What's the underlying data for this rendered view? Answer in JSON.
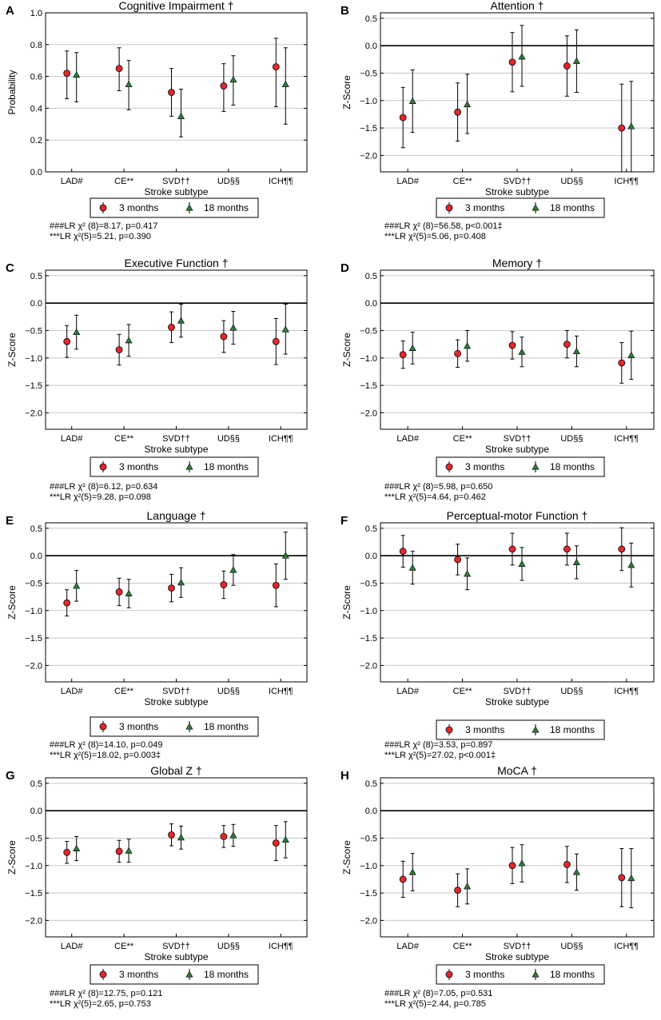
{
  "chart_data": [
    {
      "type": "errorbar",
      "panel": "A",
      "title": "Cognitive Impairment †",
      "xlabel": "Stroke subtype",
      "ylabel": "Probability",
      "ylim": [
        0.0,
        1.0
      ],
      "yticks": [
        "0.0",
        "0.2",
        "0.4",
        "0.6",
        "0.8",
        "1.0"
      ],
      "ytick_values": [
        0.0,
        0.2,
        0.4,
        0.6,
        0.8,
        1.0
      ],
      "zero_line": false,
      "categories": [
        "LAD#",
        "CE**",
        "SVD††",
        "UD§§",
        "ICH¶¶"
      ],
      "series": [
        {
          "name": "3 months",
          "values": [
            0.62,
            0.65,
            0.5,
            0.54,
            0.66
          ],
          "lower": [
            0.46,
            0.51,
            0.35,
            0.38,
            0.41
          ],
          "upper": [
            0.76,
            0.78,
            0.65,
            0.68,
            0.84
          ]
        },
        {
          "name": "18 months",
          "values": [
            0.61,
            0.55,
            0.35,
            0.58,
            0.55
          ],
          "lower": [
            0.44,
            0.39,
            0.22,
            0.42,
            0.3
          ],
          "upper": [
            0.75,
            0.7,
            0.52,
            0.73,
            0.78
          ]
        }
      ],
      "legend": [
        "3 months",
        "18 months"
      ],
      "stats": [
        "###LR χ² (8)=8.17, p=0.417",
        "***LR χ²(5)=5.21, p=0.390"
      ]
    },
    {
      "type": "errorbar",
      "panel": "B",
      "title": "Attention †",
      "xlabel": "Stroke subtype",
      "ylabel": "Z-Score",
      "ylim": [
        -2.3,
        0.6
      ],
      "yticks": [
        "0.5",
        "0.0",
        "−0.5",
        "−1.0",
        "−1.5",
        "−2.0"
      ],
      "ytick_values": [
        0.5,
        0.0,
        -0.5,
        -1.0,
        -1.5,
        -2.0
      ],
      "zero_line": true,
      "categories": [
        "LAD#",
        "CE**",
        "SVD††",
        "UD§§",
        "ICH¶¶"
      ],
      "series": [
        {
          "name": "3 months",
          "values": [
            -1.31,
            -1.21,
            -0.3,
            -0.37,
            -1.5
          ],
          "lower": [
            -1.86,
            -1.74,
            -0.84,
            -0.92,
            -2.3
          ],
          "upper": [
            -0.76,
            -0.68,
            0.24,
            0.18,
            -0.7
          ]
        },
        {
          "name": "18 months",
          "values": [
            -1.01,
            -1.07,
            -0.2,
            -0.28,
            -1.47
          ],
          "lower": [
            -1.58,
            -1.6,
            -0.74,
            -0.85,
            -2.3
          ],
          "upper": [
            -0.44,
            -0.52,
            0.37,
            0.29,
            -0.65
          ]
        }
      ],
      "legend": [
        "3 months",
        "18 months"
      ],
      "stats": [
        "###LR χ² (8)=56.58, p<0.001‡",
        "***LR χ²(5)=5.06, p=0.408"
      ]
    },
    {
      "type": "errorbar",
      "panel": "C",
      "title": "Executive Function †",
      "xlabel": "Stroke subtype",
      "ylabel": "Z-Score",
      "ylim": [
        -2.3,
        0.6
      ],
      "yticks": [
        "0.5",
        "0.0",
        "−0.5",
        "−1.0",
        "−1.5",
        "−2.0"
      ],
      "ytick_values": [
        0.5,
        0.0,
        -0.5,
        -1.0,
        -1.5,
        -2.0
      ],
      "zero_line": true,
      "categories": [
        "LAD#",
        "CE**",
        "SVD††",
        "UD§§",
        "ICH¶¶"
      ],
      "series": [
        {
          "name": "3 months",
          "values": [
            -0.7,
            -0.85,
            -0.44,
            -0.61,
            -0.7
          ],
          "lower": [
            -0.99,
            -1.13,
            -0.72,
            -0.9,
            -1.12
          ],
          "upper": [
            -0.41,
            -0.57,
            -0.16,
            -0.32,
            -0.28
          ]
        },
        {
          "name": "18 months",
          "values": [
            -0.53,
            -0.68,
            -0.32,
            -0.45,
            -0.48
          ],
          "lower": [
            -0.84,
            -0.97,
            -0.62,
            -0.75,
            -0.93
          ],
          "upper": [
            -0.22,
            -0.39,
            -0.02,
            -0.15,
            -0.02
          ]
        }
      ],
      "legend": [
        "3 months",
        "18 months"
      ],
      "stats": [
        "###LR χ² (8)=6.12, p=0.634",
        "***LR χ²(5)=9.28, p=0.098"
      ]
    },
    {
      "type": "errorbar",
      "panel": "D",
      "title": "Memory †",
      "xlabel": "Stroke subtype",
      "ylabel": "Z-Score",
      "ylim": [
        -2.3,
        0.6
      ],
      "yticks": [
        "0.5",
        "0.0",
        "−0.5",
        "−1.0",
        "−1.5",
        "−2.0"
      ],
      "ytick_values": [
        0.5,
        0.0,
        -0.5,
        -1.0,
        -1.5,
        -2.0
      ],
      "zero_line": true,
      "categories": [
        "LAD#",
        "CE**",
        "SVD††",
        "UD§§",
        "ICH¶¶"
      ],
      "series": [
        {
          "name": "3 months",
          "values": [
            -0.94,
            -0.92,
            -0.77,
            -0.75,
            -1.09
          ],
          "lower": [
            -1.19,
            -1.17,
            -1.02,
            -1.0,
            -1.46
          ],
          "upper": [
            -0.69,
            -0.67,
            -0.52,
            -0.5,
            -0.72
          ]
        },
        {
          "name": "18 months",
          "values": [
            -0.82,
            -0.78,
            -0.89,
            -0.88,
            -0.95
          ],
          "lower": [
            -1.11,
            -1.06,
            -1.16,
            -1.16,
            -1.39
          ],
          "upper": [
            -0.53,
            -0.5,
            -0.62,
            -0.6,
            -0.51
          ]
        }
      ],
      "legend": [
        "3 months",
        "18 months"
      ],
      "stats": [
        "###LR χ² (8)=5.98, p=0.650",
        "***LR χ²(5)=4.64, p=0.462"
      ]
    },
    {
      "type": "errorbar",
      "panel": "E",
      "title": "Language †",
      "xlabel": "Stroke subtype",
      "ylabel": "Z-Score",
      "ylim": [
        -2.3,
        0.6
      ],
      "yticks": [
        "0.5",
        "0.0",
        "−0.5",
        "−1.0",
        "−1.5",
        "−2.0"
      ],
      "ytick_values": [
        0.5,
        0.0,
        -0.5,
        -1.0,
        -1.5,
        -2.0
      ],
      "zero_line": true,
      "categories": [
        "LAD#",
        "CE**",
        "SVD††",
        "UD§§",
        "ICH¶¶"
      ],
      "series": [
        {
          "name": "3 months",
          "values": [
            -0.86,
            -0.66,
            -0.59,
            -0.53,
            -0.54
          ],
          "lower": [
            -1.1,
            -0.91,
            -0.84,
            -0.78,
            -0.93
          ],
          "upper": [
            -0.62,
            -0.41,
            -0.34,
            -0.28,
            -0.15
          ]
        },
        {
          "name": "18 months",
          "values": [
            -0.55,
            -0.69,
            -0.49,
            -0.26,
            0.0
          ],
          "lower": [
            -0.83,
            -0.95,
            -0.76,
            -0.54,
            -0.43
          ],
          "upper": [
            -0.27,
            -0.43,
            -0.22,
            0.02,
            0.43
          ]
        }
      ],
      "legend": [
        "3 months",
        "18 months"
      ],
      "stats": [
        "###LR χ² (8)=14.10, p=0.049",
        "***LR χ²(5)=18.02, p=0.003‡"
      ]
    },
    {
      "type": "errorbar",
      "panel": "F",
      "title": "Perceptual-motor Function †",
      "xlabel": "Stroke subtype",
      "ylabel": "Z-Score",
      "ylim": [
        -2.3,
        0.6
      ],
      "yticks": [
        "0.5",
        "0.0",
        "−0.5",
        "−1.0",
        "−1.5",
        "−2.0"
      ],
      "ytick_values": [
        0.5,
        0.0,
        -0.5,
        -1.0,
        -1.5,
        -2.0
      ],
      "zero_line": true,
      "categories": [
        "LAD#",
        "CE**",
        "SVD††",
        "UD§§",
        "ICH¶¶"
      ],
      "series": [
        {
          "name": "3 months",
          "values": [
            0.08,
            -0.07,
            0.12,
            0.12,
            0.12
          ],
          "lower": [
            -0.21,
            -0.35,
            -0.17,
            -0.17,
            -0.27
          ],
          "upper": [
            0.37,
            0.21,
            0.41,
            0.41,
            0.51
          ]
        },
        {
          "name": "18 months",
          "values": [
            -0.22,
            -0.33,
            -0.15,
            -0.12,
            -0.17
          ],
          "lower": [
            -0.52,
            -0.62,
            -0.45,
            -0.42,
            -0.57
          ],
          "upper": [
            0.08,
            -0.04,
            0.15,
            0.18,
            0.23
          ]
        }
      ],
      "legend": [
        "3 months",
        "18 months"
      ],
      "stats": [
        "###LR χ² (8)=3.53, p=0.897",
        "***LR χ²(5)=27.02, p<0.001‡"
      ]
    },
    {
      "type": "errorbar",
      "panel": "G",
      "title": "Global Z †",
      "xlabel": "Stroke subtype",
      "ylabel": "Z-Score",
      "ylim": [
        -2.3,
        0.6
      ],
      "yticks": [
        "0.5",
        "0.0",
        "−0.5",
        "−1.0",
        "−1.5",
        "−2.0"
      ],
      "ytick_values": [
        0.5,
        0.0,
        -0.5,
        -1.0,
        -1.5,
        -2.0
      ],
      "zero_line": true,
      "categories": [
        "LAD#",
        "CE**",
        "SVD††",
        "UD§§",
        "ICH¶¶"
      ],
      "series": [
        {
          "name": "3 months",
          "values": [
            -0.76,
            -0.74,
            -0.44,
            -0.47,
            -0.59
          ],
          "lower": [
            -0.96,
            -0.94,
            -0.64,
            -0.67,
            -0.91
          ],
          "upper": [
            -0.56,
            -0.54,
            -0.24,
            -0.27,
            -0.27
          ]
        },
        {
          "name": "18 months",
          "values": [
            -0.69,
            -0.73,
            -0.49,
            -0.45,
            -0.53
          ],
          "lower": [
            -0.91,
            -0.94,
            -0.7,
            -0.65,
            -0.86
          ],
          "upper": [
            -0.47,
            -0.52,
            -0.28,
            -0.25,
            -0.2
          ]
        }
      ],
      "legend": [
        "3 months",
        "18 months"
      ],
      "stats": [
        "###LR χ² (8)=12.75, p=0.121",
        "***LR χ²(5)=2.65, p=0.753"
      ]
    },
    {
      "type": "errorbar",
      "panel": "H",
      "title": "MoCA †",
      "xlabel": "Stroke subtype",
      "ylabel": "Z-Score",
      "ylim": [
        -2.3,
        0.6
      ],
      "yticks": [
        "0.5",
        "0.0",
        "−0.5",
        "−1.0",
        "−1.5",
        "−2.0"
      ],
      "ytick_values": [
        0.5,
        0.0,
        -0.5,
        -1.0,
        -1.5,
        -2.0
      ],
      "zero_line": true,
      "categories": [
        "LAD#",
        "CE**",
        "SVD††",
        "UD§§",
        "ICH¶¶"
      ],
      "series": [
        {
          "name": "3 months",
          "values": [
            -1.25,
            -1.45,
            -1.0,
            -0.98,
            -1.22
          ],
          "lower": [
            -1.58,
            -1.75,
            -1.33,
            -1.31,
            -1.75
          ],
          "upper": [
            -0.92,
            -1.15,
            -0.67,
            -0.65,
            -0.69
          ]
        },
        {
          "name": "18 months",
          "values": [
            -1.12,
            -1.38,
            -0.96,
            -1.12,
            -1.23
          ],
          "lower": [
            -1.46,
            -1.7,
            -1.3,
            -1.45,
            -1.77
          ],
          "upper": [
            -0.78,
            -1.06,
            -0.62,
            -0.79,
            -0.69
          ]
        }
      ],
      "legend": [
        "3 months",
        "18 months"
      ],
      "stats": [
        "###LR χ² (8)=7.05, p=0.531",
        "***LR χ²(5)=2.44, p=0.785"
      ]
    }
  ],
  "colors": {
    "marker_3m": "#e8262a",
    "marker_18m": "#2f7a3a",
    "gridline": "#c8c8c8",
    "axis": "#000000"
  }
}
